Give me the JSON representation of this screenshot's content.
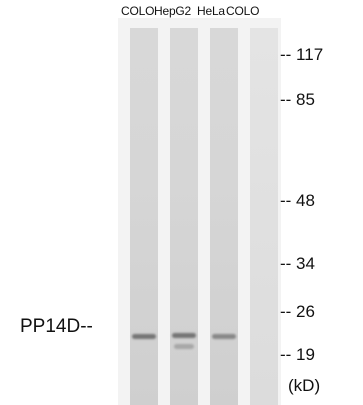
{
  "lanes": [
    "COLO",
    "HepG2",
    "HeLa",
    "COLO"
  ],
  "markers": [
    "-- 117",
    "-- 85",
    "-- 48",
    "-- 34",
    "-- 26",
    "-- 19"
  ],
  "units": "(kD)",
  "protein_label": "PP14D--"
}
